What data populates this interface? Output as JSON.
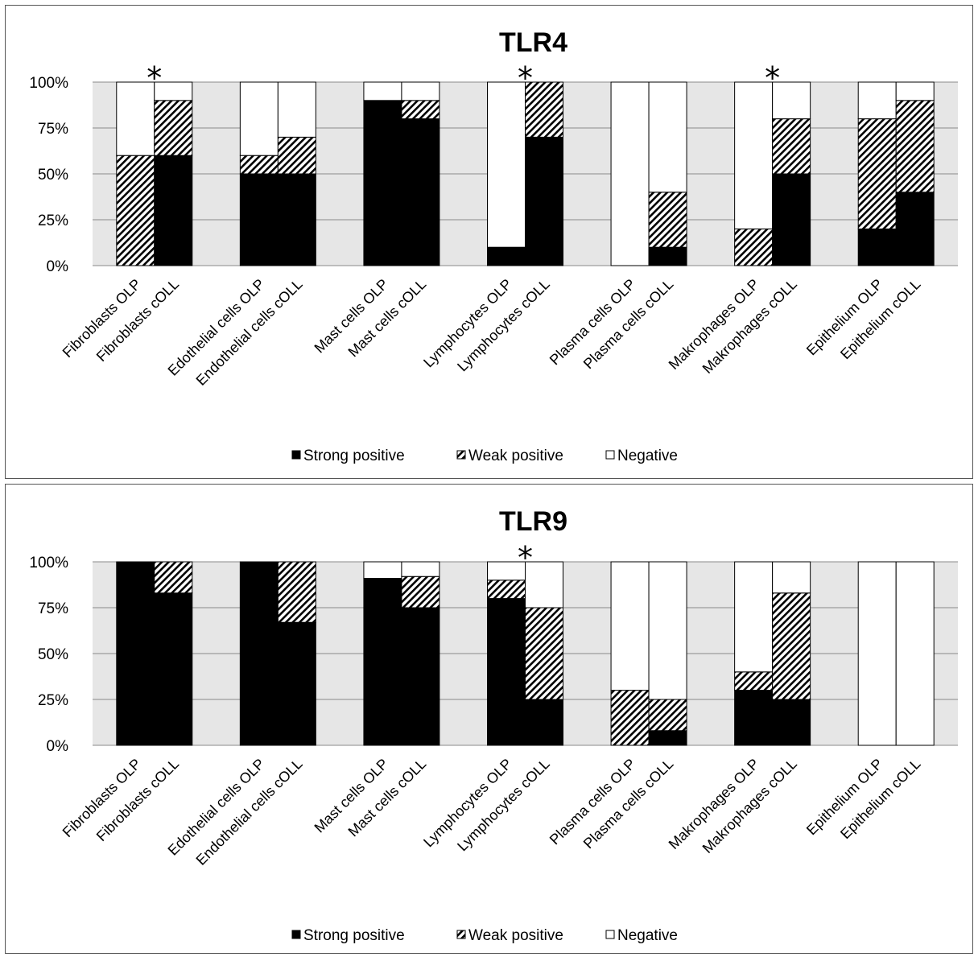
{
  "chart_data": [
    {
      "type": "bar",
      "stacked": true,
      "title": "TLR4",
      "xlabel": "",
      "ylabel": "",
      "ylim": [
        0,
        100
      ],
      "y_ticks": [
        "0%",
        "25%",
        "50%",
        "75%",
        "100%"
      ],
      "grid": true,
      "legend_position": "bottom",
      "categories": [
        "Fibroblasts OLP",
        "Fibroblasts cOLL",
        "Edothelial cells OLP",
        "Endothelial cells cOLL",
        "Mast cells OLP",
        "Mast cells cOLL",
        "Lymphocytes OLP",
        "Lymphocytes cOLL",
        "Plasma cells OLP",
        "Plasma cells cOLL",
        "Makrophages OLP",
        "Makrophages cOLL",
        "Epithelium OLP",
        "Epithelium cOLL"
      ],
      "series": [
        {
          "name": "Strong positive",
          "values": [
            0,
            60,
            50,
            50,
            90,
            80,
            10,
            70,
            0,
            10,
            0,
            50,
            20,
            40
          ]
        },
        {
          "name": "Weak positive",
          "values": [
            60,
            30,
            10,
            20,
            0,
            10,
            0,
            30,
            0,
            30,
            20,
            30,
            60,
            50
          ]
        },
        {
          "name": "Negative",
          "values": [
            40,
            10,
            40,
            30,
            10,
            10,
            90,
            0,
            100,
            60,
            80,
            20,
            20,
            10
          ]
        }
      ],
      "annotations": [
        {
          "text": "*",
          "group": 0
        },
        {
          "text": "*",
          "group": 3
        },
        {
          "text": "*",
          "group": 5
        }
      ]
    },
    {
      "type": "bar",
      "stacked": true,
      "title": "TLR9",
      "xlabel": "",
      "ylabel": "",
      "ylim": [
        0,
        100
      ],
      "y_ticks": [
        "0%",
        "25%",
        "50%",
        "75%",
        "100%"
      ],
      "grid": true,
      "legend_position": "bottom",
      "categories": [
        "Fibroblasts OLP",
        "Fibroblasts cOLL",
        "Edothelial cells OLP",
        "Endothelial cells cOLL",
        "Mast cells OLP",
        "Mast cells cOLL",
        "Lymphocytes OLP",
        "Lymphocytes cOLL",
        "Plasma cells OLP",
        "Plasma cells cOLL",
        "Makrophages OLP",
        "Makrophages cOLL",
        "Epithelium OLP",
        "Epithelium cOLL"
      ],
      "series": [
        {
          "name": "Strong positive",
          "values": [
            100,
            83,
            100,
            67,
            91,
            75,
            80,
            25,
            0,
            8,
            30,
            25,
            0,
            0
          ]
        },
        {
          "name": "Weak positive",
          "values": [
            0,
            17,
            0,
            33,
            0,
            17,
            10,
            50,
            30,
            17,
            10,
            58,
            0,
            0
          ]
        },
        {
          "name": "Negative",
          "values": [
            0,
            0,
            0,
            0,
            9,
            8,
            10,
            25,
            70,
            75,
            60,
            17,
            100,
            100
          ]
        }
      ],
      "annotations": [
        {
          "text": "*",
          "group": 3
        }
      ]
    }
  ],
  "colors": {
    "strong_positive": "#000000",
    "weak_positive": "hatched",
    "negative": "#ffffff",
    "band": "#e6e6e6",
    "grid": "#8a8a8a"
  }
}
